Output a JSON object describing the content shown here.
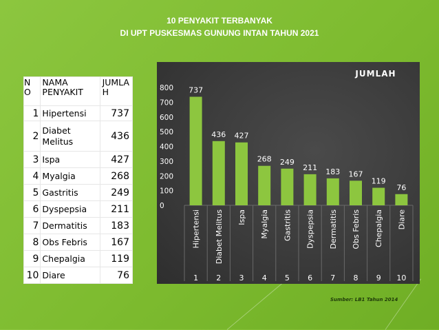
{
  "title": {
    "line1": "10 PENYAKIT TERBANYAK",
    "line2": "DI UPT PUSKESMAS GUNUNG INTAN TAHUN 2021"
  },
  "table": {
    "headers": {
      "no": "N O",
      "name": "NAMA PENYAKIT",
      "value": "JUMLA H"
    },
    "rows": [
      {
        "no": "1",
        "name": "Hipertensi",
        "value": "737"
      },
      {
        "no": "2",
        "name": "Diabet Melitus",
        "value": "436"
      },
      {
        "no": "3",
        "name": "Ispa",
        "value": "427"
      },
      {
        "no": "4",
        "name": "Myalgia",
        "value": "268"
      },
      {
        "no": "5",
        "name": "Gastritis",
        "value": "249"
      },
      {
        "no": "6",
        "name": "Dyspepsia",
        "value": "211"
      },
      {
        "no": "7",
        "name": "Dermatitis",
        "value": "183"
      },
      {
        "no": "8",
        "name": "Obs Febris",
        "value": "167"
      },
      {
        "no": "9",
        "name": "Chepalgia",
        "value": "119"
      },
      {
        "no": "10",
        "name": "Diare",
        "value": "76"
      }
    ]
  },
  "chart_data": {
    "type": "bar",
    "title": "JUMLAH",
    "categories": [
      "Hipertensi",
      "Diabet Melitus",
      "Ispa",
      "Myalgia",
      "Gastritis",
      "Dyspepsia",
      "Dermatitis",
      "Obs Febris",
      "Chepalgia",
      "Diare"
    ],
    "numbers": [
      "1",
      "2",
      "3",
      "4",
      "5",
      "6",
      "7",
      "8",
      "9",
      "10"
    ],
    "values": [
      737,
      436,
      427,
      268,
      249,
      211,
      183,
      167,
      119,
      76
    ],
    "yticks": [
      0,
      100,
      200,
      300,
      400,
      500,
      600,
      700,
      800
    ],
    "ylim": [
      0,
      800
    ],
    "xlabel": "",
    "ylabel": "",
    "grid": true,
    "legend": "none",
    "bar_color": "#8dc63f",
    "background": "#3d3d3d"
  },
  "source": "Sumber: LB1 Tahun 2014"
}
